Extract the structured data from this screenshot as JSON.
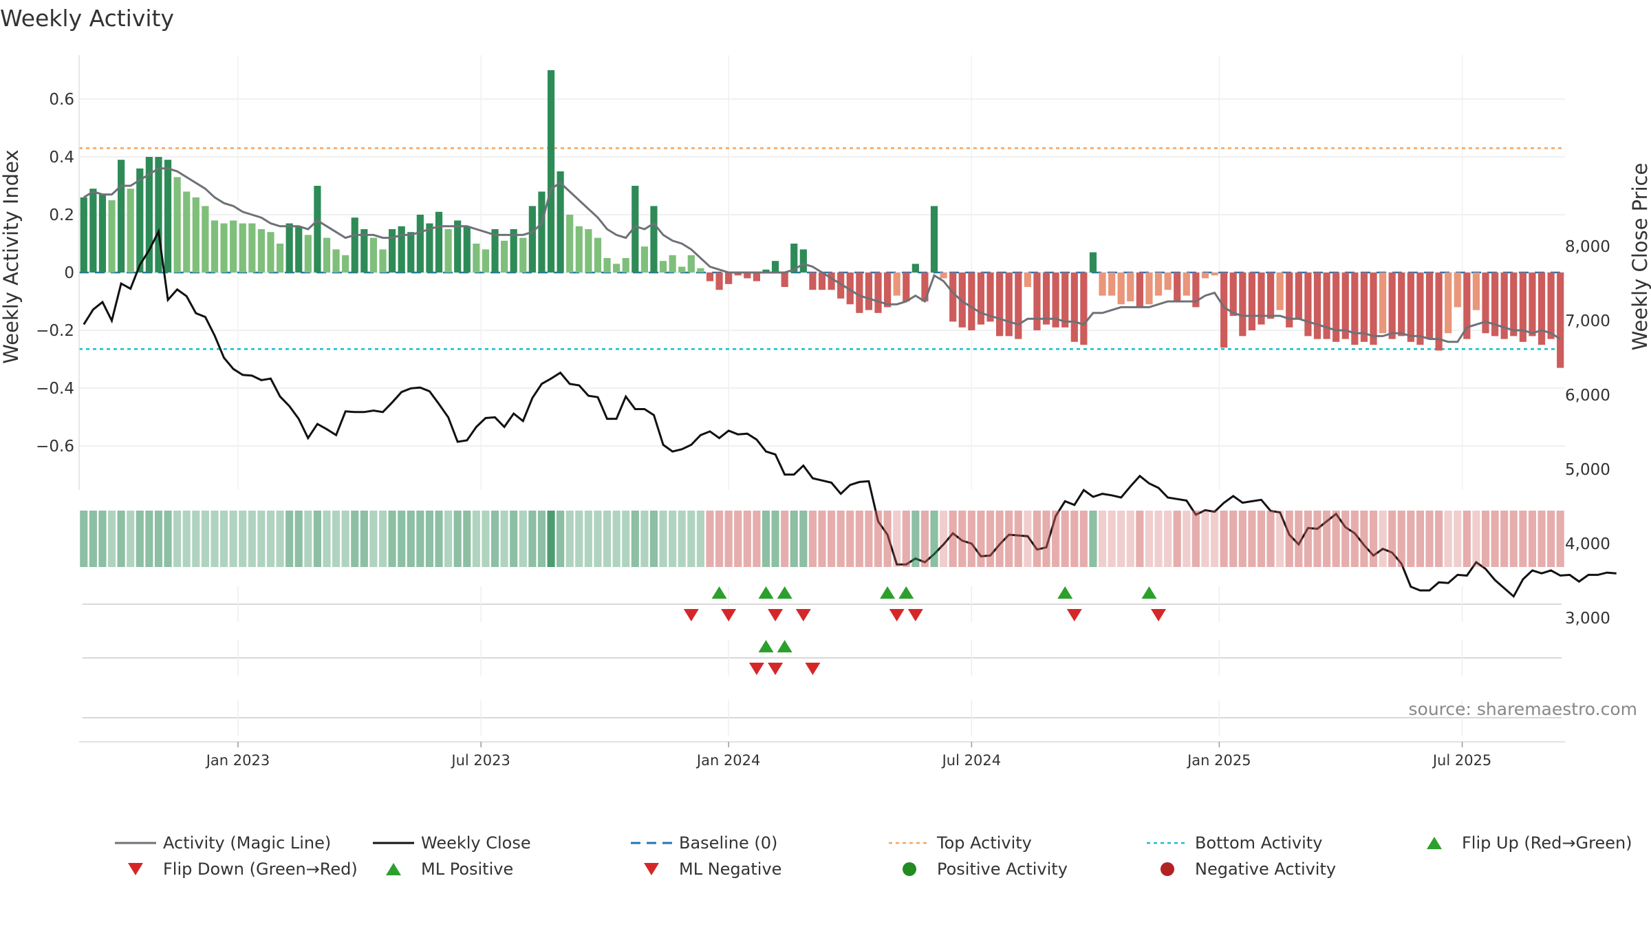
{
  "title": "Weekly Activity",
  "source": "source: sharemaestro.com",
  "chart_data": {
    "type": "bar",
    "title": "Weekly Activity",
    "ylabel_left": "Weekly Activity Index",
    "ylabel_right": "Weekly Close Price",
    "ylim_left": [
      -0.75,
      0.75
    ],
    "ylim_right": [
      2600,
      8500
    ],
    "left_ticks": [
      {
        "value": 0.6,
        "label": "0.6"
      },
      {
        "value": 0.4,
        "label": "0.4"
      },
      {
        "value": 0.2,
        "label": "0.2"
      },
      {
        "value": 0,
        "label": "0"
      },
      {
        "value": -0.2,
        "label": "−0.2"
      },
      {
        "value": -0.4,
        "label": "−0.4"
      },
      {
        "value": -0.6,
        "label": "−0.6"
      }
    ],
    "right_ticks": [
      {
        "value": 8000,
        "label": "8,000"
      },
      {
        "value": 7000,
        "label": "7,000"
      },
      {
        "value": 6000,
        "label": "6,000"
      },
      {
        "value": 5000,
        "label": "5,000"
      },
      {
        "value": 4000,
        "label": "4,000"
      },
      {
        "value": 3000,
        "label": "3,000"
      }
    ],
    "x_ticks": [
      {
        "week": 16.5,
        "label": "Jan 2023"
      },
      {
        "week": 42.5,
        "label": "Jul 2023"
      },
      {
        "week": 69,
        "label": "Jan 2024"
      },
      {
        "week": 95,
        "label": "Jul 2024"
      },
      {
        "week": 121.5,
        "label": "Jan 2025"
      },
      {
        "week": 147.5,
        "label": "Jul 2025"
      }
    ],
    "top_activity": 0.43,
    "bottom_activity": -0.265,
    "activity": [
      0.26,
      0.29,
      0.27,
      0.25,
      0.39,
      0.29,
      0.36,
      0.4,
      0.4,
      0.39,
      0.33,
      0.28,
      0.26,
      0.23,
      0.18,
      0.17,
      0.18,
      0.17,
      0.17,
      0.15,
      0.14,
      0.1,
      0.17,
      0.16,
      0.13,
      0.3,
      0.12,
      0.08,
      0.06,
      0.19,
      0.15,
      0.12,
      0.08,
      0.15,
      0.16,
      0.14,
      0.2,
      0.17,
      0.21,
      0.15,
      0.18,
      0.16,
      0.1,
      0.08,
      0.15,
      0.11,
      0.15,
      0.12,
      0.23,
      0.28,
      0.7,
      0.35,
      0.2,
      0.16,
      0.15,
      0.12,
      0.05,
      0.03,
      0.05,
      0.3,
      0.09,
      0.23,
      0.04,
      0.06,
      0.02,
      0.06,
      0.015,
      -0.03,
      -0.06,
      -0.04,
      -0.01,
      -0.02,
      -0.03,
      0.01,
      0.04,
      -0.05,
      0.1,
      0.08,
      -0.06,
      -0.06,
      -0.06,
      -0.09,
      -0.11,
      -0.14,
      -0.13,
      -0.14,
      -0.12,
      -0.08,
      -0.1,
      0.03,
      -0.1,
      0.23,
      -0.02,
      -0.17,
      -0.19,
      -0.2,
      -0.18,
      -0.17,
      -0.22,
      -0.22,
      -0.23,
      -0.05,
      -0.2,
      -0.18,
      -0.19,
      -0.19,
      -0.24,
      -0.25,
      0.07,
      -0.08,
      -0.08,
      -0.11,
      -0.1,
      -0.12,
      -0.11,
      -0.08,
      -0.06,
      -0.1,
      -0.08,
      -0.12,
      -0.02,
      -0.01,
      -0.26,
      -0.15,
      -0.22,
      -0.2,
      -0.18,
      -0.16,
      -0.13,
      -0.19,
      -0.16,
      -0.22,
      -0.23,
      -0.23,
      -0.24,
      -0.23,
      -0.25,
      -0.24,
      -0.25,
      -0.21,
      -0.23,
      -0.22,
      -0.24,
      -0.25,
      -0.23,
      -0.27,
      -0.21,
      -0.12,
      -0.23,
      -0.13,
      -0.21,
      -0.22,
      -0.23,
      -0.22,
      -0.24,
      -0.22,
      -0.25,
      -0.23,
      -0.33
    ],
    "magic_line": [
      0.26,
      0.28,
      0.27,
      0.27,
      0.3,
      0.3,
      0.32,
      0.34,
      0.36,
      0.36,
      0.35,
      0.33,
      0.31,
      0.29,
      0.26,
      0.24,
      0.23,
      0.21,
      0.2,
      0.19,
      0.17,
      0.16,
      0.16,
      0.16,
      0.15,
      0.18,
      0.16,
      0.14,
      0.12,
      0.13,
      0.13,
      0.13,
      0.12,
      0.12,
      0.13,
      0.13,
      0.14,
      0.15,
      0.16,
      0.16,
      0.16,
      0.16,
      0.15,
      0.14,
      0.13,
      0.13,
      0.13,
      0.13,
      0.14,
      0.17,
      0.29,
      0.31,
      0.28,
      0.25,
      0.22,
      0.19,
      0.15,
      0.13,
      0.12,
      0.16,
      0.15,
      0.17,
      0.13,
      0.11,
      0.1,
      0.08,
      0.05,
      0.02,
      0.01,
      0.0,
      0.0,
      0.0,
      0.0,
      0.0,
      0.0,
      0.0,
      0.01,
      0.03,
      0.02,
      0.0,
      -0.02,
      -0.04,
      -0.06,
      -0.08,
      -0.09,
      -0.1,
      -0.11,
      -0.11,
      -0.1,
      -0.08,
      -0.1,
      -0.01,
      -0.03,
      -0.07,
      -0.1,
      -0.12,
      -0.14,
      -0.15,
      -0.16,
      -0.17,
      -0.18,
      -0.16,
      -0.16,
      -0.16,
      -0.16,
      -0.17,
      -0.17,
      -0.18,
      -0.14,
      -0.14,
      -0.13,
      -0.12,
      -0.12,
      -0.12,
      -0.12,
      -0.11,
      -0.1,
      -0.1,
      -0.1,
      -0.1,
      -0.08,
      -0.07,
      -0.12,
      -0.14,
      -0.15,
      -0.15,
      -0.15,
      -0.15,
      -0.15,
      -0.16,
      -0.16,
      -0.17,
      -0.18,
      -0.19,
      -0.2,
      -0.2,
      -0.21,
      -0.21,
      -0.22,
      -0.22,
      -0.21,
      -0.21,
      -0.22,
      -0.22,
      -0.23,
      -0.23,
      -0.24,
      -0.24,
      -0.19,
      -0.18,
      -0.17,
      -0.18,
      -0.19,
      -0.2,
      -0.2,
      -0.21,
      -0.2,
      -0.21,
      -0.23
    ],
    "weekly_close": [
      6950,
      7150,
      7250,
      7000,
      7500,
      7430,
      7750,
      7950,
      8200,
      7280,
      7420,
      7330,
      7100,
      7050,
      6800,
      6500,
      6350,
      6270,
      6260,
      6200,
      6220,
      5980,
      5850,
      5680,
      5420,
      5610,
      5540,
      5460,
      5780,
      5770,
      5770,
      5790,
      5770,
      5900,
      6040,
      6090,
      6100,
      6050,
      5880,
      5700,
      5370,
      5390,
      5570,
      5690,
      5700,
      5570,
      5750,
      5650,
      5960,
      6150,
      6220,
      6300,
      6150,
      6130,
      5990,
      5970,
      5680,
      5680,
      5980,
      5810,
      5810,
      5730,
      5330,
      5240,
      5270,
      5330,
      5460,
      5510,
      5420,
      5520,
      5470,
      5480,
      5400,
      5240,
      5200,
      4930,
      4930,
      5050,
      4880,
      4850,
      4820,
      4670,
      4790,
      4830,
      4840,
      4300,
      4120,
      3720,
      3720,
      3800,
      3750,
      3860,
      3990,
      4140,
      4040,
      4000,
      3830,
      3840,
      3990,
      4120,
      4110,
      4100,
      3920,
      3950,
      4370,
      4570,
      4520,
      4720,
      4630,
      4670,
      4650,
      4620,
      4770,
      4910,
      4810,
      4750,
      4620,
      4600,
      4580,
      4390,
      4450,
      4430,
      4550,
      4640,
      4550,
      4570,
      4590,
      4440,
      4420,
      4120,
      3990,
      4210,
      4200,
      4300,
      4400,
      4220,
      4140,
      3980,
      3840,
      3930,
      3880,
      3730,
      3420,
      3370,
      3370,
      3480,
      3470,
      3580,
      3570,
      3750,
      3660,
      3510,
      3400,
      3290,
      3520,
      3640,
      3600,
      3640,
      3570,
      3580,
      3490,
      3580,
      3580,
      3610,
      3600
    ],
    "ml_flips_up": [
      68,
      73,
      75,
      86,
      88,
      105,
      114
    ],
    "ml_flips_down": [
      65,
      69,
      74,
      77,
      87,
      89,
      106,
      115
    ],
    "activity_flips_up": [
      73,
      75
    ],
    "activity_flips_down": [
      72,
      74,
      78
    ],
    "colors": {
      "strong_positive": "#2e8b57",
      "weak_positive": "#7fbf7b",
      "strong_negative": "#cd5c5c",
      "weak_negative": "#e9967a",
      "magic_line": "#6e7177",
      "close_line": "#111111",
      "baseline": "#1f77b4",
      "top_activity": "#f4a460",
      "bottom_activity": "#17becf",
      "flip_up": "#2ca02c",
      "flip_down": "#d62728",
      "positive_activity": "#228b22",
      "negative_activity": "#b22222"
    },
    "legend": [
      {
        "key": "magic",
        "label": "Activity (Magic Line)",
        "marker": "line-gray"
      },
      {
        "key": "close",
        "label": "Weekly Close",
        "marker": "line-black"
      },
      {
        "key": "baseline",
        "label": "Baseline (0)",
        "marker": "dash-blue"
      },
      {
        "key": "top",
        "label": "Top Activity",
        "marker": "dot-orange"
      },
      {
        "key": "bottom",
        "label": "Bottom Activity",
        "marker": "dot-cyan"
      },
      {
        "key": "flipup",
        "label": "Flip Up (Red→Green)",
        "marker": "tri-up"
      },
      {
        "key": "flipdown",
        "label": "Flip Down (Green→Red)",
        "marker": "tri-down"
      },
      {
        "key": "mlpos",
        "label": "ML Positive",
        "marker": "tri-up"
      },
      {
        "key": "mlneg",
        "label": "ML Negative",
        "marker": "tri-down"
      },
      {
        "key": "posact",
        "label": "Positive Activity",
        "marker": "circle-green"
      },
      {
        "key": "negact",
        "label": "Negative Activity",
        "marker": "circle-red"
      }
    ]
  }
}
